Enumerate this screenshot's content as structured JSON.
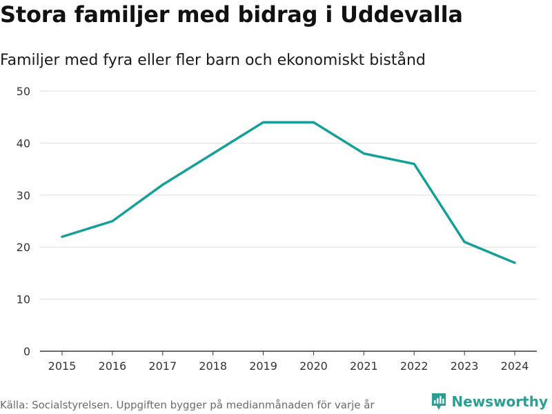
{
  "header": {
    "title": "Stora familjer med bidrag i Uddevalla",
    "subtitle": "Familjer med fyra eller fler barn och ekonomiskt bistånd"
  },
  "footer": {
    "source": "Källa: Socialstyrelsen. Uppgiften bygger på medianmånaden för varje år",
    "brand": "Newsworthy",
    "brand_icon": "newsworthy-logo-icon"
  },
  "colors": {
    "line": "#14a098",
    "grid": "#dddddd",
    "axis": "#333333",
    "brand": "#2e9e95"
  },
  "chart_data": {
    "type": "line",
    "title": "Stora familjer med bidrag i Uddevalla",
    "subtitle": "Familjer med fyra eller fler barn och ekonomiskt bistånd",
    "xlabel": "",
    "ylabel": "",
    "categories": [
      "2015",
      "2016",
      "2017",
      "2018",
      "2019",
      "2020",
      "2021",
      "2022",
      "2023",
      "2024"
    ],
    "series": [
      {
        "name": "Familjer",
        "values": [
          22,
          25,
          32,
          38,
          44,
          44,
          38,
          36,
          21,
          17
        ]
      }
    ],
    "ylim": [
      0,
      50
    ],
    "yticks": [
      0,
      10,
      20,
      30,
      40,
      50
    ],
    "grid": true,
    "legend": "none"
  }
}
